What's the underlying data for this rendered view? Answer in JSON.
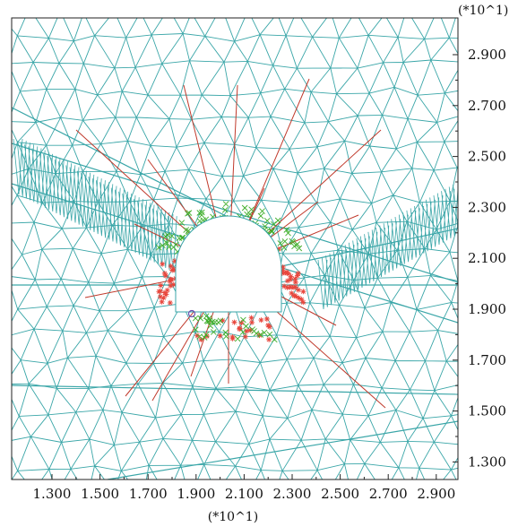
{
  "plot": {
    "x_scale_label": "(*10^1)",
    "y_scale_label": "(*10^1)",
    "x_ticks": [
      "1.300",
      "1.500",
      "1.700",
      "1.900",
      "2.100",
      "2.300",
      "2.500",
      "2.700",
      "2.900"
    ],
    "y_ticks": [
      "2.900",
      "2.700",
      "2.500",
      "2.300",
      "2.100",
      "1.900",
      "1.700",
      "1.500",
      "1.300"
    ]
  },
  "colors": {
    "mesh": "#3aa6a8",
    "cable": "#c0392b",
    "plastic_shear": "#e8463c",
    "plastic_tension": "#3fae2a",
    "opening": "#ffffff",
    "frame": "#222222"
  }
}
